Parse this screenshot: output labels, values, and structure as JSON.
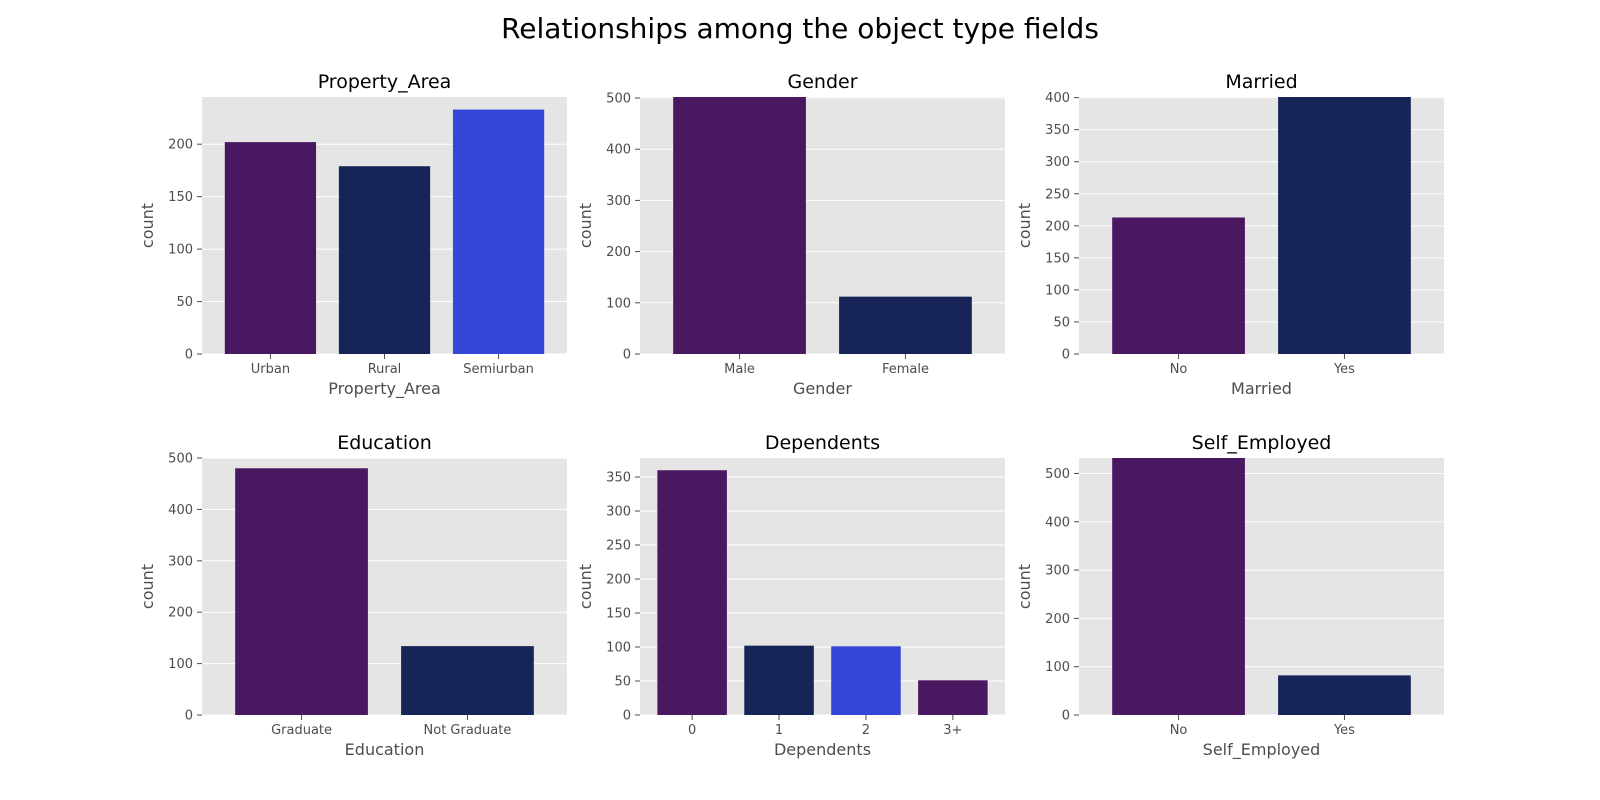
{
  "suptitle": "Relationships among the object type fields",
  "chart_data": [
    {
      "type": "bar",
      "title": "Property_Area",
      "xlabel": "Property_Area",
      "ylabel": "count",
      "categories": [
        "Urban",
        "Rural",
        "Semiurban"
      ],
      "values": [
        202,
        179,
        233
      ],
      "colors": [
        "#4a1860",
        "#172457",
        "#3446d6"
      ],
      "ylim": [
        0,
        245
      ],
      "yticks": [
        0,
        50,
        100,
        150,
        200
      ],
      "grid": true
    },
    {
      "type": "bar",
      "title": "Gender",
      "xlabel": "Gender",
      "ylabel": "count",
      "categories": [
        "Male",
        "Female"
      ],
      "values": [
        502,
        112
      ],
      "colors": [
        "#4a1860",
        "#172457"
      ],
      "ylim": [
        0,
        502
      ],
      "yticks": [
        0,
        100,
        200,
        300,
        400,
        500
      ],
      "grid": true
    },
    {
      "type": "bar",
      "title": "Married",
      "xlabel": "Married",
      "ylabel": "count",
      "categories": [
        "No",
        "Yes"
      ],
      "values": [
        213,
        401
      ],
      "colors": [
        "#4a1860",
        "#172457"
      ],
      "ylim": [
        0,
        401
      ],
      "yticks": [
        0,
        50,
        100,
        150,
        200,
        250,
        300,
        350,
        400
      ],
      "grid": true
    },
    {
      "type": "bar",
      "title": "Education",
      "xlabel": "Education",
      "ylabel": "count",
      "categories": [
        "Graduate",
        "Not Graduate"
      ],
      "values": [
        480,
        134
      ],
      "colors": [
        "#4a1860",
        "#172457"
      ],
      "ylim": [
        0,
        500
      ],
      "yticks": [
        0,
        100,
        200,
        300,
        400,
        500
      ],
      "grid": true
    },
    {
      "type": "bar",
      "title": "Dependents",
      "xlabel": "Dependents",
      "ylabel": "count",
      "categories": [
        "0",
        "1",
        "2",
        "3+"
      ],
      "values": [
        360,
        102,
        101,
        51
      ],
      "colors": [
        "#4a1860",
        "#172457",
        "#3446d6",
        "#4a1860"
      ],
      "ylim": [
        0,
        378
      ],
      "yticks": [
        0,
        50,
        100,
        150,
        200,
        250,
        300,
        350
      ],
      "grid": true
    },
    {
      "type": "bar",
      "title": "Self_Employed",
      "xlabel": "Self_Employed",
      "ylabel": "count",
      "categories": [
        "No",
        "Yes"
      ],
      "values": [
        532,
        82
      ],
      "colors": [
        "#4a1860",
        "#172457"
      ],
      "ylim": [
        0,
        532
      ],
      "yticks": [
        0,
        100,
        200,
        300,
        400,
        500
      ],
      "grid": true
    }
  ]
}
